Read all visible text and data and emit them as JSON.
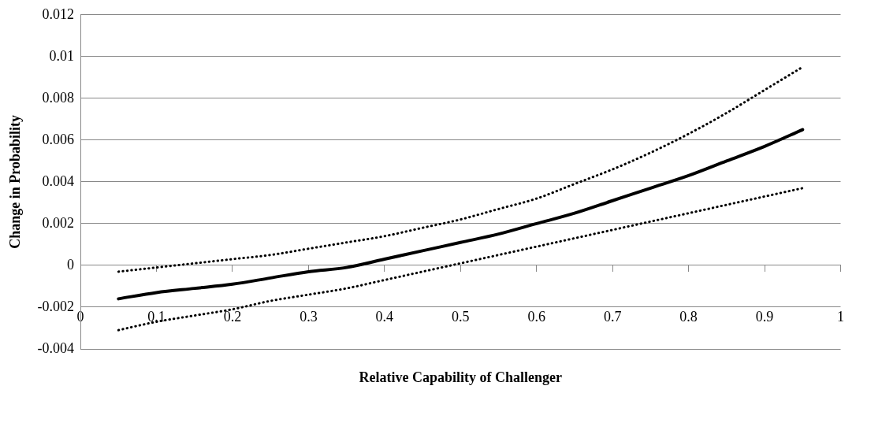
{
  "chart_data": {
    "type": "line",
    "xlabel": "Relative Capability of Challenger",
    "ylabel": "Change in Probability",
    "x": [
      0.05,
      0.1,
      0.15,
      0.2,
      0.25,
      0.3,
      0.35,
      0.4,
      0.45,
      0.5,
      0.55,
      0.6,
      0.65,
      0.7,
      0.75,
      0.8,
      0.85,
      0.9,
      0.95
    ],
    "series": [
      {
        "color": "#000000",
        "line_style": "dotted",
        "values": [
          -0.0003,
          -0.0001,
          0.0001,
          0.0003,
          0.0005,
          0.0008,
          0.0011,
          0.0014,
          0.0018,
          0.0022,
          0.0027,
          0.0032,
          0.0039,
          0.0046,
          0.0054,
          0.0063,
          0.0073,
          0.0084,
          0.0095
        ]
      },
      {
        "color": "#000000",
        "line_style": "solid",
        "values": [
          -0.0016,
          -0.0013,
          -0.0011,
          -0.0009,
          -0.0006,
          -0.0003,
          -0.0001,
          0.0003,
          0.0007,
          0.0011,
          0.0015,
          0.002,
          0.0025,
          0.0031,
          0.0037,
          0.0043,
          0.005,
          0.0057,
          0.0065
        ]
      },
      {
        "color": "#000000",
        "line_style": "dotted",
        "values": [
          -0.0031,
          -0.0027,
          -0.0024,
          -0.0021,
          -0.0017,
          -0.0014,
          -0.0011,
          -0.0007,
          -0.0003,
          0.0001,
          0.0005,
          0.0009,
          0.0013,
          0.0017,
          0.0021,
          0.0025,
          0.0029,
          0.0033,
          0.0037
        ]
      }
    ],
    "xlim": [
      0,
      1
    ],
    "xticks": [
      0,
      0.1,
      0.2,
      0.3,
      0.4,
      0.5,
      0.6,
      0.7,
      0.8,
      0.9,
      1
    ],
    "ylim": [
      -0.004,
      0.012
    ],
    "yticks": [
      -0.004,
      -0.002,
      0,
      0.002,
      0.004,
      0.006,
      0.008,
      0.01,
      0.012
    ],
    "grid": "y",
    "legend": false,
    "marker": "none"
  }
}
